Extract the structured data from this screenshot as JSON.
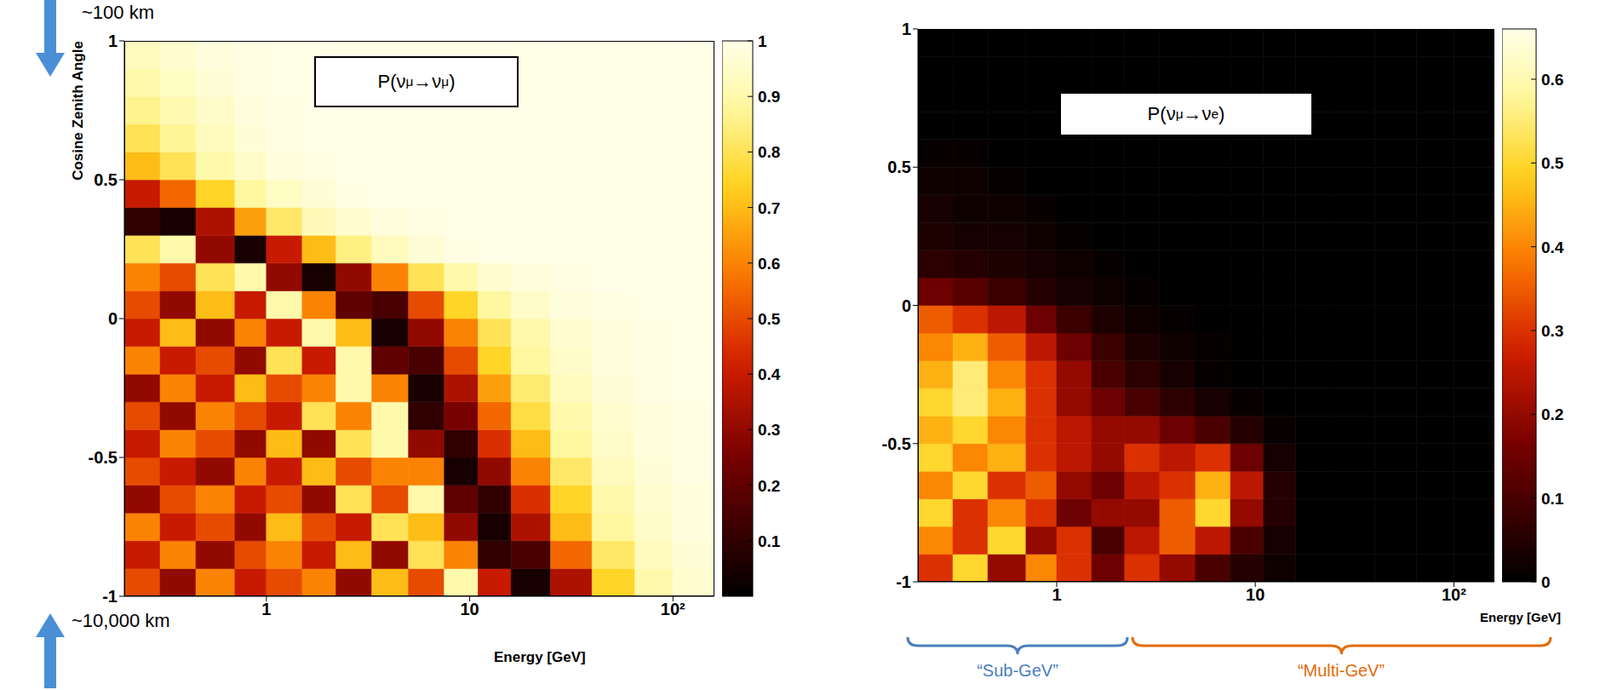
{
  "chart_data": [
    {
      "type": "heatmap",
      "title": "P(νμ→νμ )",
      "x_label": "Energy [GeV]",
      "y_label": "Cosine Zenith Angle",
      "log": "x",
      "xlim": [
        0.2,
        160
      ],
      "xticks": [
        1,
        10,
        {
          "value": 100,
          "label": "10²"
        }
      ],
      "ylim": [
        -1,
        1
      ],
      "yticks": [
        -1,
        -0.5,
        0,
        0.5,
        1
      ],
      "x_edges": [
        0.2,
        0.3,
        0.45,
        0.7,
        1,
        1.5,
        2.2,
        3.3,
        5,
        7.5,
        11,
        16,
        25,
        40,
        65,
        100,
        160
      ],
      "y_edges": [
        -1,
        -0.9,
        -0.8,
        -0.7,
        -0.6,
        -0.5,
        -0.4,
        -0.3,
        -0.2,
        -0.1,
        0,
        0.1,
        0.2,
        0.3,
        0.4,
        0.5,
        0.6,
        0.7,
        0.8,
        0.9,
        1
      ],
      "cells": [
        [
          0.5,
          0.3,
          0.6,
          0.4,
          0.5,
          0.6,
          0.3,
          0.7,
          0.5,
          0.9,
          0.4,
          0.05,
          0.35,
          0.75,
          0.9,
          0.96
        ],
        [
          0.4,
          0.6,
          0.3,
          0.5,
          0.6,
          0.4,
          0.7,
          0.3,
          0.8,
          0.6,
          0.1,
          0.15,
          0.55,
          0.82,
          0.93,
          0.97
        ],
        [
          0.6,
          0.4,
          0.5,
          0.3,
          0.7,
          0.5,
          0.4,
          0.8,
          0.7,
          0.3,
          0.05,
          0.35,
          0.7,
          0.88,
          0.95,
          0.98
        ],
        [
          0.3,
          0.5,
          0.6,
          0.4,
          0.5,
          0.3,
          0.8,
          0.5,
          0.9,
          0.2,
          0.1,
          0.45,
          0.75,
          0.9,
          0.96,
          0.98
        ],
        [
          0.5,
          0.4,
          0.3,
          0.6,
          0.4,
          0.7,
          0.5,
          0.6,
          0.6,
          0.05,
          0.3,
          0.6,
          0.82,
          0.93,
          0.97,
          0.99
        ],
        [
          0.4,
          0.6,
          0.5,
          0.3,
          0.7,
          0.3,
          0.8,
          0.9,
          0.3,
          0.1,
          0.45,
          0.7,
          0.88,
          0.95,
          0.98,
          0.99
        ],
        [
          0.5,
          0.3,
          0.6,
          0.5,
          0.4,
          0.8,
          0.6,
          0.9,
          0.1,
          0.25,
          0.55,
          0.78,
          0.9,
          0.96,
          0.98,
          0.99
        ],
        [
          0.3,
          0.6,
          0.4,
          0.7,
          0.5,
          0.6,
          0.9,
          0.6,
          0.05,
          0.35,
          0.65,
          0.83,
          0.93,
          0.97,
          0.99,
          1
        ],
        [
          0.6,
          0.4,
          0.5,
          0.3,
          0.8,
          0.4,
          0.9,
          0.2,
          0.15,
          0.5,
          0.75,
          0.88,
          0.95,
          0.98,
          0.99,
          1
        ],
        [
          0.4,
          0.7,
          0.3,
          0.6,
          0.4,
          0.9,
          0.7,
          0.05,
          0.3,
          0.6,
          0.8,
          0.9,
          0.96,
          0.98,
          0.99,
          1
        ],
        [
          0.5,
          0.3,
          0.7,
          0.4,
          0.9,
          0.6,
          0.2,
          0.15,
          0.5,
          0.75,
          0.88,
          0.95,
          0.98,
          0.99,
          1,
          1
        ],
        [
          0.6,
          0.5,
          0.8,
          0.9,
          0.3,
          0.05,
          0.3,
          0.6,
          0.8,
          0.9,
          0.96,
          0.98,
          0.99,
          1,
          1,
          1
        ],
        [
          0.8,
          0.9,
          0.3,
          0.05,
          0.4,
          0.7,
          0.85,
          0.93,
          0.97,
          0.99,
          1,
          1,
          1,
          1,
          1,
          1
        ],
        [
          0.1,
          0.05,
          0.35,
          0.65,
          0.82,
          0.92,
          0.96,
          0.98,
          0.99,
          1,
          1,
          1,
          1,
          1,
          1,
          1
        ],
        [
          0.4,
          0.55,
          0.75,
          0.88,
          0.94,
          0.97,
          0.99,
          1,
          1,
          1,
          1,
          1,
          1,
          1,
          1,
          1
        ],
        [
          0.7,
          0.8,
          0.9,
          0.95,
          0.98,
          0.99,
          1,
          1,
          1,
          1,
          1,
          1,
          1,
          1,
          1,
          1
        ],
        [
          0.8,
          0.87,
          0.93,
          0.97,
          0.99,
          1,
          1,
          1,
          1,
          1,
          1,
          1,
          1,
          1,
          1,
          1
        ],
        [
          0.86,
          0.91,
          0.95,
          0.98,
          0.99,
          1,
          1,
          1,
          1,
          1,
          1,
          1,
          1,
          1,
          1,
          1
        ],
        [
          0.9,
          0.94,
          0.97,
          0.99,
          1,
          1,
          1,
          1,
          1,
          1,
          1,
          1,
          1,
          1,
          1,
          1
        ],
        [
          0.93,
          0.96,
          0.98,
          0.99,
          1,
          1,
          1,
          1,
          1,
          1,
          1,
          1,
          1,
          1,
          1,
          1
        ]
      ],
      "colorbar": {
        "range": [
          0,
          1
        ],
        "ticks": [
          0.1,
          0.2,
          0.3,
          0.4,
          0.5,
          0.6,
          0.7,
          0.8,
          0.9,
          1
        ]
      },
      "annotations": [
        "~100 km",
        "~10,000 km"
      ]
    },
    {
      "type": "heatmap",
      "title": "P(νμ→νe)",
      "x_label": "Energy [GeV]",
      "log": "x",
      "xlim": [
        0.2,
        160
      ],
      "xticks": [
        1,
        10,
        {
          "value": 100,
          "label": "10²"
        }
      ],
      "ylim": [
        -1,
        1
      ],
      "yticks": [
        -1,
        -0.5,
        0,
        0.5,
        1
      ],
      "x_edges": [
        0.2,
        0.3,
        0.45,
        0.7,
        1,
        1.5,
        2.2,
        3.3,
        5,
        7.5,
        11,
        16,
        25,
        40,
        65,
        100,
        160
      ],
      "y_edges": [
        -1,
        -0.9,
        -0.8,
        -0.7,
        -0.6,
        -0.5,
        -0.4,
        -0.3,
        -0.2,
        -0.1,
        0,
        0.1,
        0.2,
        0.3,
        0.4,
        0.5,
        0.6,
        0.7,
        0.8,
        0.9,
        1
      ],
      "cells": [
        [
          0.3,
          0.5,
          0.2,
          0.4,
          0.3,
          0.15,
          0.3,
          0.2,
          0.1,
          0.05,
          0.02,
          0,
          0,
          0,
          0,
          0
        ],
        [
          0.4,
          0.3,
          0.5,
          0.2,
          0.3,
          0.1,
          0.25,
          0.35,
          0.25,
          0.1,
          0.03,
          0,
          0,
          0,
          0,
          0
        ],
        [
          0.5,
          0.3,
          0.4,
          0.3,
          0.15,
          0.2,
          0.2,
          0.35,
          0.5,
          0.2,
          0.05,
          0,
          0,
          0,
          0,
          0
        ],
        [
          0.4,
          0.5,
          0.3,
          0.35,
          0.2,
          0.15,
          0.25,
          0.3,
          0.45,
          0.25,
          0.05,
          0,
          0,
          0,
          0,
          0
        ],
        [
          0.5,
          0.4,
          0.45,
          0.3,
          0.25,
          0.2,
          0.3,
          0.25,
          0.3,
          0.15,
          0.03,
          0,
          0,
          0,
          0,
          0
        ],
        [
          0.45,
          0.5,
          0.4,
          0.3,
          0.25,
          0.2,
          0.2,
          0.15,
          0.1,
          0.05,
          0.01,
          0,
          0,
          0,
          0,
          0
        ],
        [
          0.5,
          0.55,
          0.45,
          0.3,
          0.2,
          0.15,
          0.1,
          0.06,
          0.03,
          0.01,
          0,
          0,
          0,
          0,
          0,
          0
        ],
        [
          0.45,
          0.55,
          0.4,
          0.3,
          0.2,
          0.1,
          0.06,
          0.03,
          0.01,
          0,
          0,
          0,
          0,
          0,
          0,
          0
        ],
        [
          0.4,
          0.45,
          0.35,
          0.25,
          0.15,
          0.08,
          0.04,
          0.02,
          0.01,
          0,
          0,
          0,
          0,
          0,
          0,
          0
        ],
        [
          0.35,
          0.3,
          0.25,
          0.15,
          0.08,
          0.04,
          0.02,
          0.01,
          0,
          0,
          0,
          0,
          0,
          0,
          0,
          0
        ],
        [
          0.15,
          0.12,
          0.08,
          0.05,
          0.03,
          0.02,
          0.01,
          0,
          0,
          0,
          0,
          0,
          0,
          0,
          0,
          0
        ],
        [
          0.06,
          0.05,
          0.04,
          0.03,
          0.02,
          0.01,
          0,
          0,
          0,
          0,
          0,
          0,
          0,
          0,
          0,
          0
        ],
        [
          0.04,
          0.03,
          0.03,
          0.02,
          0.01,
          0,
          0,
          0,
          0,
          0,
          0,
          0,
          0,
          0,
          0,
          0
        ],
        [
          0.03,
          0.02,
          0.02,
          0.01,
          0,
          0,
          0,
          0,
          0,
          0,
          0,
          0,
          0,
          0,
          0,
          0
        ],
        [
          0.02,
          0.02,
          0.01,
          0,
          0,
          0,
          0,
          0,
          0,
          0,
          0,
          0,
          0,
          0,
          0,
          0
        ],
        [
          0.01,
          0.01,
          0,
          0,
          0,
          0,
          0,
          0,
          0,
          0,
          0,
          0,
          0,
          0,
          0,
          0
        ],
        [
          0,
          0,
          0,
          0,
          0,
          0,
          0,
          0,
          0,
          0,
          0,
          0,
          0,
          0,
          0,
          0
        ],
        [
          0,
          0,
          0,
          0,
          0,
          0,
          0,
          0,
          0,
          0,
          0,
          0,
          0,
          0,
          0,
          0
        ],
        [
          0,
          0,
          0,
          0,
          0,
          0,
          0,
          0,
          0,
          0,
          0,
          0,
          0,
          0,
          0,
          0
        ],
        [
          0,
          0,
          0,
          0,
          0,
          0,
          0,
          0,
          0,
          0,
          0,
          0,
          0,
          0,
          0,
          0
        ]
      ],
      "colorbar": {
        "range": [
          0,
          0.66
        ],
        "ticks": [
          0,
          0.1,
          0.2,
          0.3,
          0.4,
          0.5,
          0.6
        ]
      },
      "annotations": [
        "“Sub-GeV”",
        "“Multi-GeV”"
      ]
    }
  ]
}
